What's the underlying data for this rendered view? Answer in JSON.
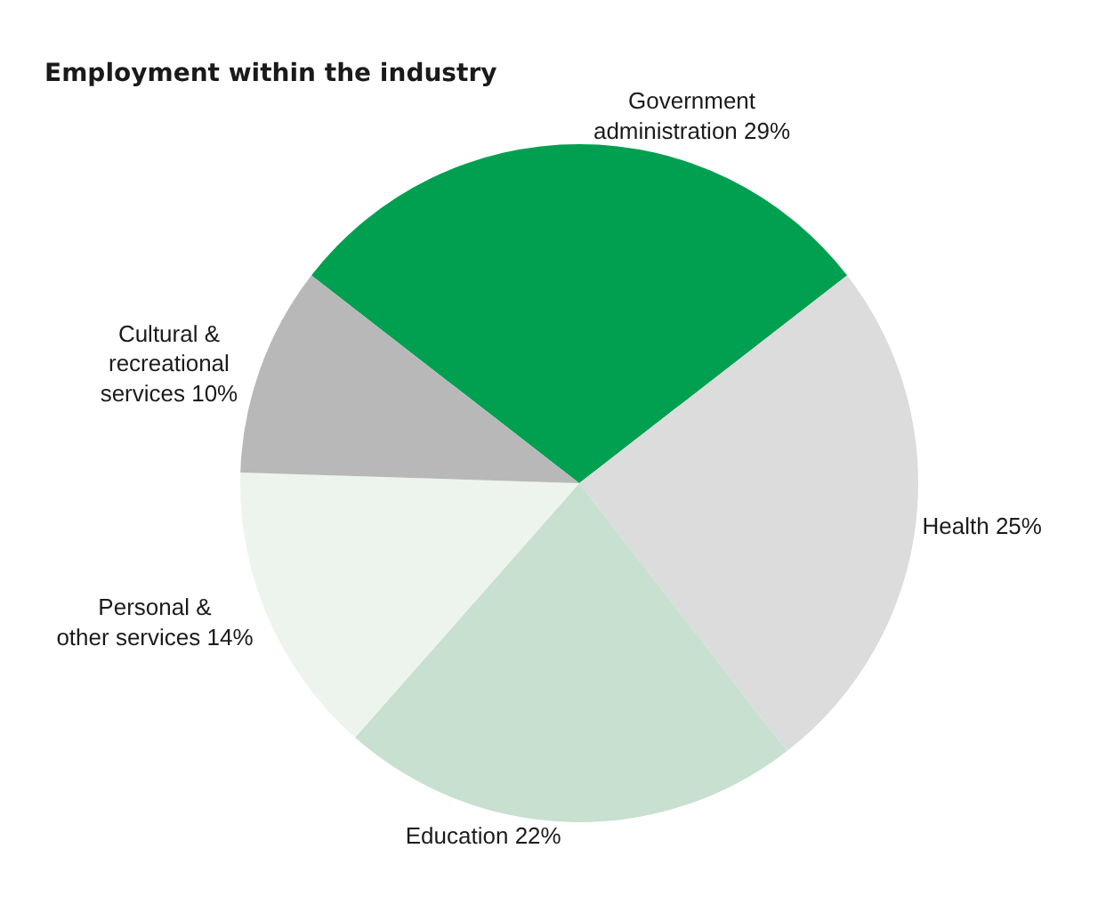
{
  "chart_data": {
    "type": "pie",
    "title": "Employment within the industry",
    "categories": [
      "Government\nadministration",
      "Health",
      "Education",
      "Personal &\nother services",
      "Cultural &\nrecreational\nservices"
    ],
    "values": [
      29,
      25,
      22,
      14,
      10
    ],
    "colors": [
      "#00a050",
      "#dcdcdc",
      "#c8e0d0",
      "#edf4ee",
      "#b8b8b8"
    ],
    "value_labels": [
      "29%",
      "25%",
      "22%",
      "14%",
      "10%"
    ],
    "legend": false
  }
}
